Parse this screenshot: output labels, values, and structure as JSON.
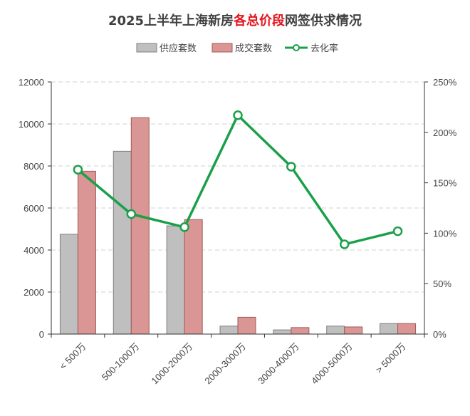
{
  "title": {
    "prefix": "2025上半年上海新房",
    "highlight": "各总价段",
    "suffix": "网签供求情况",
    "highlight_color": "#e3161e",
    "color": "#404040"
  },
  "legend": {
    "supply": "供应套数",
    "deal": "成交套数",
    "ratio": "去化率"
  },
  "colors": {
    "supply": "#bfbfbf",
    "supply_border": "#7f7f7f",
    "deal": "#d99694",
    "deal_border": "#a05a58",
    "ratio": "#1aa04a",
    "grid": "#d0d0d0"
  },
  "chart_data": {
    "type": "bar",
    "categories": [
      "< 500万",
      "500-1000万",
      "1000-2000万",
      "2000-3000万",
      "3000-4000万",
      "4000-5000万",
      "> 5000万"
    ],
    "series": [
      {
        "name": "供应套数",
        "type": "bar",
        "axis": "left",
        "values": [
          4750,
          8700,
          5150,
          380,
          200,
          380,
          500
        ]
      },
      {
        "name": "成交套数",
        "type": "bar",
        "axis": "left",
        "values": [
          7750,
          10300,
          5450,
          800,
          310,
          340,
          500
        ]
      },
      {
        "name": "去化率",
        "type": "line",
        "axis": "right",
        "values": [
          1.63,
          1.19,
          1.06,
          2.17,
          1.66,
          0.89,
          1.02
        ]
      }
    ],
    "y_left": {
      "min": 0,
      "max": 12000,
      "ticks": [
        "0",
        "2000",
        "4000",
        "6000",
        "8000",
        "10000",
        "12000"
      ]
    },
    "y_right": {
      "min": 0,
      "max": 2.5,
      "ticks": [
        "0%",
        "50%",
        "100%",
        "150%",
        "200%",
        "250%"
      ]
    },
    "grid": true,
    "legend_position": "top"
  }
}
